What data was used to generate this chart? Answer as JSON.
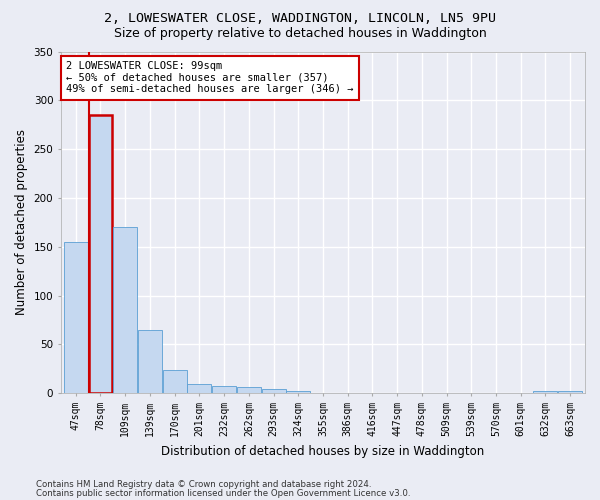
{
  "title1": "2, LOWESWATER CLOSE, WADDINGTON, LINCOLN, LN5 9PU",
  "title2": "Size of property relative to detached houses in Waddington",
  "xlabel": "Distribution of detached houses by size in Waddington",
  "ylabel": "Number of detached properties",
  "bar_labels": [
    "47sqm",
    "78sqm",
    "109sqm",
    "139sqm",
    "170sqm",
    "201sqm",
    "232sqm",
    "262sqm",
    "293sqm",
    "324sqm",
    "355sqm",
    "386sqm",
    "416sqm",
    "447sqm",
    "478sqm",
    "509sqm",
    "539sqm",
    "570sqm",
    "601sqm",
    "632sqm",
    "663sqm"
  ],
  "bar_values": [
    155,
    285,
    170,
    65,
    24,
    10,
    7,
    6,
    4,
    2,
    0,
    0,
    0,
    0,
    0,
    0,
    0,
    0,
    0,
    2,
    2
  ],
  "bar_color": "#c5d8f0",
  "bar_edge_color": "#5a9fd4",
  "highlight_bar_index": 1,
  "highlight_edge_color": "#cc0000",
  "vline_x_index": 1,
  "vline_color": "#cc0000",
  "annotation_text": "2 LOWESWATER CLOSE: 99sqm\n← 50% of detached houses are smaller (357)\n49% of semi-detached houses are larger (346) →",
  "annotation_box_color": "white",
  "annotation_box_edge": "#cc0000",
  "ylim": [
    0,
    350
  ],
  "yticks": [
    0,
    50,
    100,
    150,
    200,
    250,
    300,
    350
  ],
  "footnote1": "Contains HM Land Registry data © Crown copyright and database right 2024.",
  "footnote2": "Contains public sector information licensed under the Open Government Licence v3.0.",
  "bg_color": "#eaecf4",
  "plot_bg_color": "#eaecf4",
  "grid_color": "#ffffff",
  "title1_fontsize": 9.5,
  "title2_fontsize": 9,
  "xlabel_fontsize": 8.5,
  "ylabel_fontsize": 8.5,
  "tick_fontsize": 7,
  "annotation_fontsize": 7.5
}
